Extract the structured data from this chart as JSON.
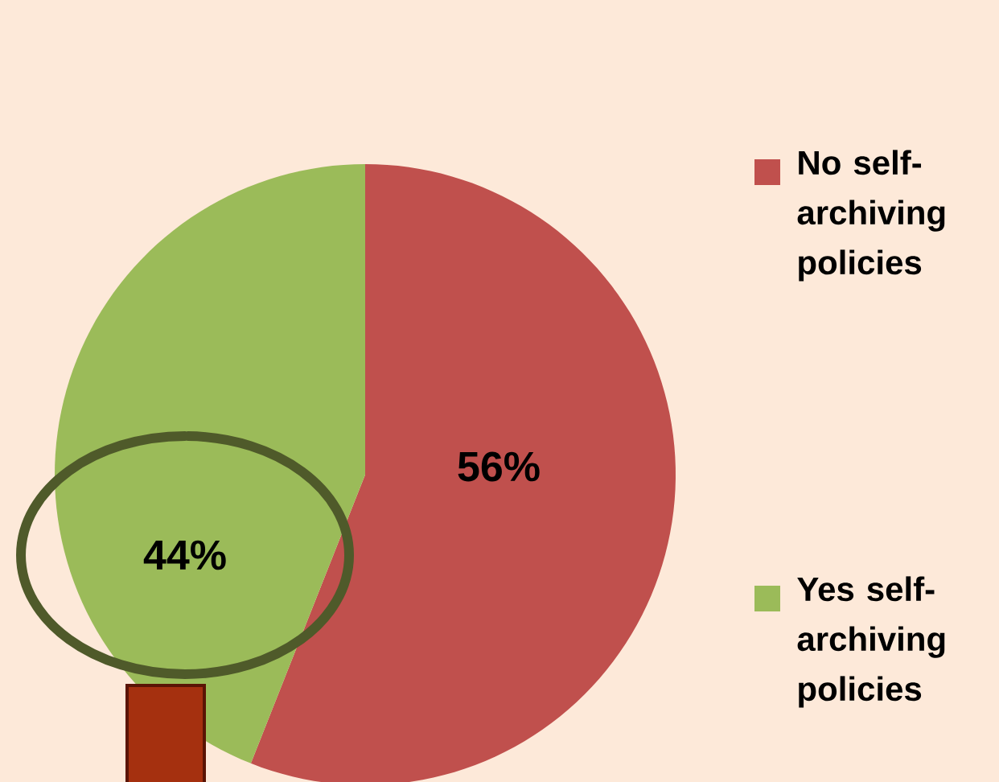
{
  "chart_data": {
    "type": "pie",
    "categories": [
      "No self-archiving policies",
      "Yes self-archiving policies"
    ],
    "values": [
      56,
      44
    ],
    "colors": [
      "#c0504d",
      "#9bbb59"
    ],
    "value_labels": [
      "56%",
      "44%"
    ],
    "legend": "right"
  }
}
